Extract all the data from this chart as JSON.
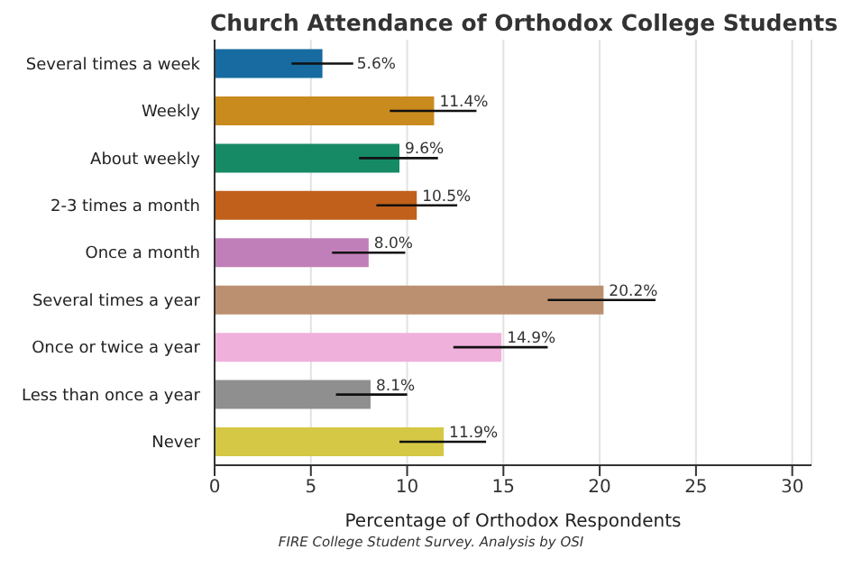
{
  "chart_data": {
    "type": "bar",
    "orientation": "horizontal",
    "title": "Church Attendance of Orthodox College Students",
    "xlabel": "Percentage of Orthodox Respondents",
    "annotations": [
      "FIRE College Student Survey. Analysis by OSI"
    ],
    "categories": [
      "Several times a week",
      "Weekly",
      "About weekly",
      "2-3 times a month",
      "Once a month",
      "Several times a year",
      "Once or twice a year",
      "Less than once a year",
      "Never"
    ],
    "values": [
      5.6,
      11.4,
      9.6,
      10.5,
      8.0,
      20.2,
      14.9,
      8.1,
      11.9
    ],
    "value_labels": [
      "5.6%",
      "11.4%",
      "9.6%",
      "10.5%",
      "8.0%",
      "20.2%",
      "14.9%",
      "8.1%",
      "11.9%"
    ],
    "errors": [
      [
        4.0,
        7.2
      ],
      [
        9.1,
        13.6
      ],
      [
        7.5,
        11.6
      ],
      [
        8.4,
        12.6
      ],
      [
        6.1,
        9.9
      ],
      [
        17.3,
        22.9
      ],
      [
        12.4,
        17.3
      ],
      [
        6.3,
        10.0
      ],
      [
        9.6,
        14.1
      ]
    ],
    "colors": [
      "#176ba0",
      "#c98a1e",
      "#168a64",
      "#c0601a",
      "#c07fb8",
      "#bb9070",
      "#f0b0dc",
      "#8f8f8f",
      "#d5c844"
    ],
    "xlim": [
      0,
      31
    ],
    "xticks": [
      0,
      5,
      10,
      15,
      20,
      25,
      30
    ],
    "grid": "x"
  }
}
